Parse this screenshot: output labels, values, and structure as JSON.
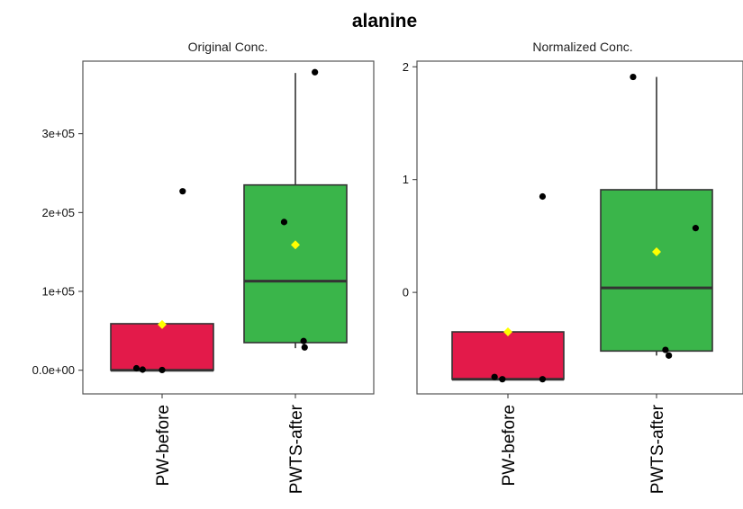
{
  "figure": {
    "title": "alanine"
  },
  "chart_data": [
    {
      "type": "box",
      "title": "Original Conc.",
      "categories": [
        "PW-before",
        "PWTS-after"
      ],
      "y_ticks": [
        {
          "value": 0,
          "label": "0.0e+00"
        },
        {
          "value": 100000,
          "label": "1e+05"
        },
        {
          "value": 200000,
          "label": "2e+05"
        },
        {
          "value": 300000,
          "label": "3e+05"
        }
      ],
      "ylim": [
        -30000,
        392000
      ],
      "boxes": [
        {
          "category": "PW-before",
          "q1": 0,
          "median": 0,
          "q3": 59000,
          "whisker_low": 0,
          "whisker_high": 59000,
          "mean": 58000,
          "color": "#e31a4a"
        },
        {
          "category": "PWTS-after",
          "q1": 35000,
          "median": 113000,
          "q3": 235000,
          "whisker_low": 28000,
          "whisker_high": 377000,
          "mean": 159000,
          "color": "#3ab54a"
        }
      ],
      "points": [
        {
          "category": "PW-before",
          "offset": -0.25,
          "value": 2500
        },
        {
          "category": "PW-before",
          "offset": -0.19,
          "value": 800
        },
        {
          "category": "PW-before",
          "offset": 0.0,
          "value": 300
        },
        {
          "category": "PW-before",
          "offset": 0.2,
          "value": 227000
        },
        {
          "category": "PWTS-after",
          "offset": -0.11,
          "value": 188000
        },
        {
          "category": "PWTS-after",
          "offset": 0.08,
          "value": 37000
        },
        {
          "category": "PWTS-after",
          "offset": 0.09,
          "value": 29000
        },
        {
          "category": "PWTS-after",
          "offset": 0.19,
          "value": 378000
        }
      ]
    },
    {
      "type": "box",
      "title": "Normalized Conc.",
      "categories": [
        "PW-before",
        "PWTS-after"
      ],
      "y_ticks": [
        {
          "value": 0,
          "label": "0"
        },
        {
          "value": 1,
          "label": "1"
        },
        {
          "value": 2,
          "label": "2"
        }
      ],
      "ylim": [
        -0.9,
        2.05
      ],
      "boxes": [
        {
          "category": "PW-before",
          "q1": -0.77,
          "median": -0.77,
          "q3": -0.35,
          "whisker_low": -0.77,
          "whisker_high": -0.35,
          "mean": -0.35,
          "color": "#e31a4a"
        },
        {
          "category": "PWTS-after",
          "q1": -0.52,
          "median": 0.04,
          "q3": 0.91,
          "whisker_low": -0.56,
          "whisker_high": 1.91,
          "mean": 0.36,
          "color": "#3ab54a"
        }
      ],
      "points": [
        {
          "category": "PW-before",
          "offset": -0.12,
          "value": -0.75
        },
        {
          "category": "PW-before",
          "offset": -0.05,
          "value": -0.77
        },
        {
          "category": "PW-before",
          "offset": 0.31,
          "value": -0.77
        },
        {
          "category": "PW-before",
          "offset": 0.31,
          "value": 0.85
        },
        {
          "category": "PWTS-after",
          "offset": -0.21,
          "value": 1.91
        },
        {
          "category": "PWTS-after",
          "offset": 0.08,
          "value": -0.51
        },
        {
          "category": "PWTS-after",
          "offset": 0.11,
          "value": -0.56
        },
        {
          "category": "PWTS-after",
          "offset": 0.35,
          "value": 0.57
        }
      ]
    }
  ],
  "colors": {
    "mean_marker": "#ffff00",
    "point": "#000000",
    "box_edge": "#333333",
    "panel_border": "#555555"
  }
}
